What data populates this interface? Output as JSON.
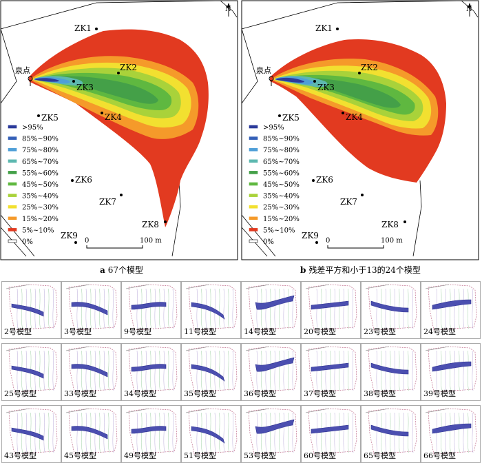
{
  "north_label": "N",
  "spring_label": "泉点",
  "boreholes": [
    "ZK1",
    "ZK2",
    "ZK3",
    "ZK4",
    "ZK5",
    "ZK6",
    "ZK7",
    "ZK8",
    "ZK9"
  ],
  "legend": [
    {
      "label": ">95%",
      "color": "#2b3a9a"
    },
    {
      "label": "85%~90%",
      "color": "#3560b8"
    },
    {
      "label": "75%~80%",
      "color": "#4f9fd8"
    },
    {
      "label": "65%~70%",
      "color": "#5db8b0"
    },
    {
      "label": "55%~60%",
      "color": "#44a048"
    },
    {
      "label": "45%~50%",
      "color": "#5fb840"
    },
    {
      "label": "35%~40%",
      "color": "#a9d23a"
    },
    {
      "label": "25%~30%",
      "color": "#f2e030"
    },
    {
      "label": "15%~20%",
      "color": "#f59a2a"
    },
    {
      "label": "5%~10%",
      "color": "#e23a20"
    },
    {
      "label": "0%",
      "color": "#ffffff"
    }
  ],
  "scale": {
    "start": "0",
    "end": "100 m"
  },
  "panels": [
    {
      "letter": "a",
      "caption": "67个模型"
    },
    {
      "letter": "b",
      "caption": "残差平方和小于13的24个模型"
    }
  ],
  "models": [
    "2号模型",
    "3号模型",
    "9号模型",
    "11号模型",
    "14号模型",
    "20号模型",
    "23号模型",
    "24号模型",
    "25号模型",
    "33号模型",
    "34号模型",
    "35号模型",
    "36号模型",
    "37号模型",
    "38号模型",
    "39号模型",
    "43号模型",
    "45号模型",
    "49号模型",
    "51号模型",
    "53号模型",
    "60号模型",
    "65号模型",
    "66号模型"
  ]
}
